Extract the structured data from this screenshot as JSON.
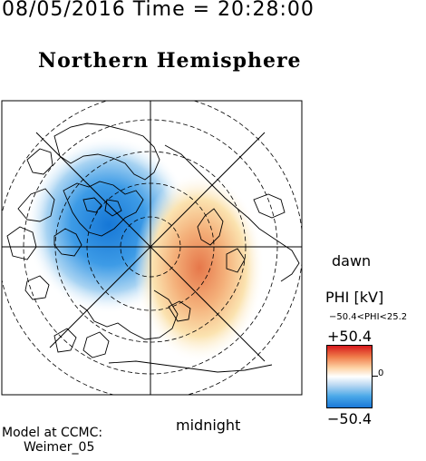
{
  "header": {
    "datetime": "08/05/2016 Time = 20:28:00",
    "hemisphere": "Northern Hemisphere"
  },
  "map": {
    "projection": "polar",
    "orientation_labels": {
      "dawn": "dawn",
      "midnight": "midnight"
    },
    "potential_cells": [
      {
        "name": "negative-cell",
        "color": "#1a78d8"
      },
      {
        "name": "positive-cell",
        "color": "#e8804f"
      }
    ]
  },
  "colorbar": {
    "title": "PHI [kV]",
    "range_text": "−50.4<PHI<25.2",
    "max_label": "+50.4",
    "min_label": "−50.4",
    "zero_label": "0",
    "colors": [
      "#d7191c",
      "#f07c4a",
      "#fdd3a6",
      "#ffffff",
      "#b9d8f2",
      "#4aa8e8",
      "#1a78d8"
    ]
  },
  "footer": {
    "model_line1": "Model at CCMC:",
    "model_line2": "Weimer_05"
  }
}
